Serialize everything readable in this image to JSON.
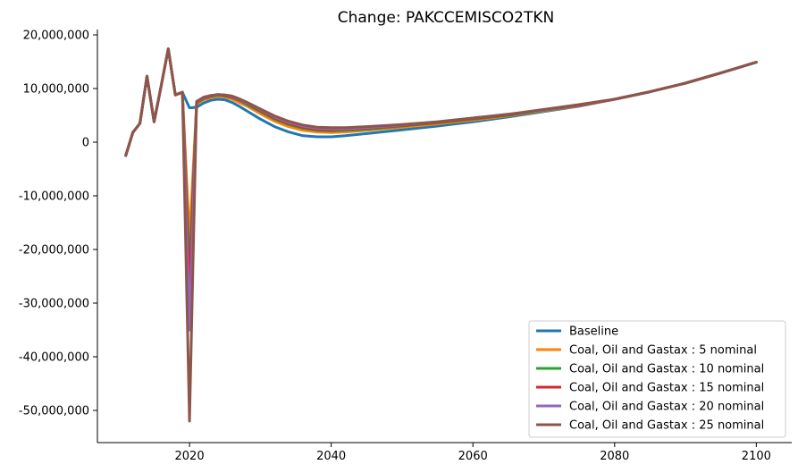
{
  "chart_data": {
    "type": "line",
    "title": "Change: PAKCCEMISCO2TKN",
    "xlabel": "",
    "ylabel": "",
    "xlim": [
      2007,
      2105
    ],
    "ylim": [
      -56000000,
      21000000
    ],
    "x_ticks": [
      2020,
      2040,
      2060,
      2080,
      2100
    ],
    "x_tick_labels": [
      "2020",
      "2040",
      "2060",
      "2080",
      "2100"
    ],
    "y_ticks": [
      20000000,
      10000000,
      0,
      -10000000,
      -20000000,
      -30000000,
      -40000000,
      -50000000
    ],
    "y_tick_labels": [
      "20,000,000",
      "10,000,000",
      "0",
      "-10,000,000",
      "-20,000,000",
      "-30,000,000",
      "-40,000,000",
      "-50,000,000"
    ],
    "grid": false,
    "legend_position": "bottom-right",
    "x": [
      2011,
      2012,
      2013,
      2014,
      2015,
      2016,
      2017,
      2018,
      2019,
      2020,
      2021,
      2022,
      2023,
      2024,
      2025,
      2026,
      2027,
      2028,
      2030,
      2032,
      2034,
      2036,
      2038,
      2040,
      2042,
      2045,
      2050,
      2055,
      2060,
      2065,
      2070,
      2075,
      2080,
      2085,
      2090,
      2095,
      2100
    ],
    "series": [
      {
        "name": "Baseline",
        "color": "#1f77b4",
        "values": [
          -2500000,
          1800000,
          3500000,
          12300000,
          3800000,
          10500000,
          17400000,
          8800000,
          9300000,
          6400000,
          6500000,
          7300000,
          7800000,
          8000000,
          7900000,
          7400000,
          6700000,
          5900000,
          4300000,
          2900000,
          1900000,
          1200000,
          1000000,
          1000000,
          1200000,
          1600000,
          2300000,
          3000000,
          3800000,
          4700000,
          5700000,
          6700000,
          8000000,
          9400000,
          11000000,
          12900000,
          14900000
        ]
      },
      {
        "name": "Coal, Oil and Gastax : 5 nominal",
        "color": "#ff7f0e",
        "values": [
          -2500000,
          1800000,
          3500000,
          12300000,
          3800000,
          10500000,
          17400000,
          8800000,
          9300000,
          -18000000,
          7100000,
          7900000,
          8300000,
          8500000,
          8400000,
          8000000,
          7400000,
          6800000,
          5300000,
          3900000,
          2900000,
          2200000,
          1900000,
          1800000,
          1900000,
          2200000,
          2800000,
          3400000,
          4100000,
          4900000,
          5800000,
          6800000,
          8000000,
          9400000,
          11000000,
          12900000,
          14900000
        ]
      },
      {
        "name": "Coal, Oil and Gastax : 10 nominal",
        "color": "#2ca02c",
        "values": [
          -2500000,
          1800000,
          3500000,
          12300000,
          3800000,
          10500000,
          17400000,
          8800000,
          9300000,
          -24000000,
          7300000,
          8100000,
          8500000,
          8700000,
          8600000,
          8300000,
          7800000,
          7100000,
          5700000,
          4300000,
          3300000,
          2600000,
          2200000,
          2100000,
          2200000,
          2400000,
          3000000,
          3600000,
          4300000,
          5000000,
          5900000,
          6900000,
          8000000,
          9400000,
          11000000,
          12900000,
          14900000
        ]
      },
      {
        "name": "Coal, Oil and Gastax : 15 nominal",
        "color": "#d62728",
        "values": [
          -2500000,
          1800000,
          3500000,
          12300000,
          3800000,
          10500000,
          17400000,
          8800000,
          9300000,
          -28000000,
          7400000,
          8200000,
          8600000,
          8800000,
          8700000,
          8400000,
          7900000,
          7300000,
          5900000,
          4500000,
          3500000,
          2800000,
          2400000,
          2300000,
          2400000,
          2600000,
          3100000,
          3700000,
          4400000,
          5100000,
          6000000,
          6900000,
          8000000,
          9400000,
          11000000,
          12900000,
          14900000
        ]
      },
      {
        "name": "Coal, Oil and Gastax : 20 nominal",
        "color": "#9467bd",
        "values": [
          -2500000,
          1800000,
          3500000,
          12300000,
          3800000,
          10500000,
          17400000,
          8800000,
          9300000,
          -35000000,
          7500000,
          8300000,
          8700000,
          8800000,
          8800000,
          8500000,
          8000000,
          7400000,
          6100000,
          4700000,
          3700000,
          3000000,
          2600000,
          2500000,
          2500000,
          2700000,
          3200000,
          3800000,
          4500000,
          5200000,
          6000000,
          7000000,
          8000000,
          9400000,
          11000000,
          12900000,
          14900000
        ]
      },
      {
        "name": "Coal, Oil and Gastax : 25 nominal",
        "color": "#8c564b",
        "values": [
          -2500000,
          1800000,
          3500000,
          12300000,
          3800000,
          10500000,
          17400000,
          8800000,
          9300000,
          -52000000,
          7600000,
          8400000,
          8700000,
          8900000,
          8800000,
          8600000,
          8100000,
          7500000,
          6200000,
          4900000,
          3900000,
          3200000,
          2800000,
          2700000,
          2700000,
          2900000,
          3300000,
          3800000,
          4500000,
          5200000,
          6100000,
          7000000,
          8000000,
          9400000,
          11000000,
          12900000,
          14900000
        ]
      }
    ]
  }
}
